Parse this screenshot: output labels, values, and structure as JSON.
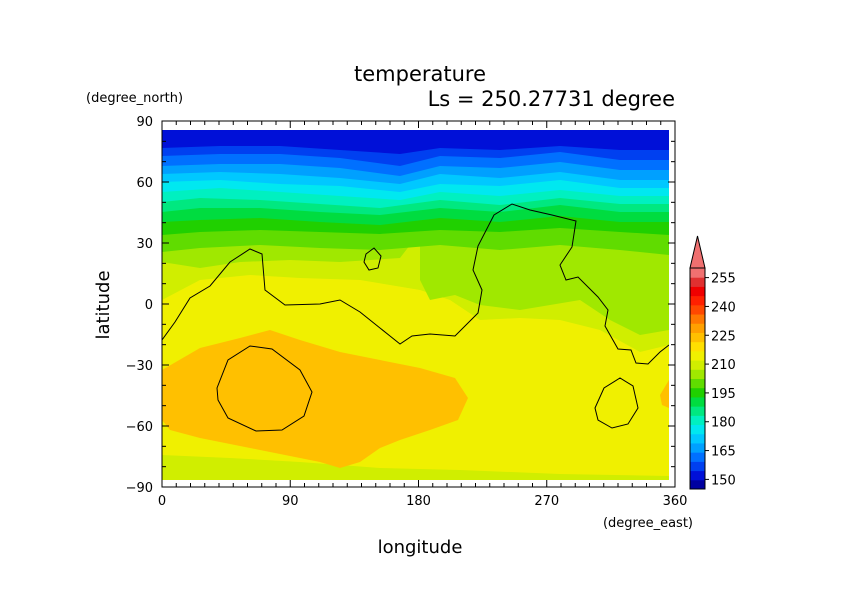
{
  "chart_data": {
    "type": "heatmap",
    "title": "temperature",
    "subtitle": "Ls = 250.27731 degree",
    "xlabel": "longitude",
    "ylabel": "latitude",
    "x_unit": "(degree_east)",
    "y_unit": "(degree_north)",
    "xlim": [
      0,
      360
    ],
    "ylim": [
      -90,
      90
    ],
    "x_ticks": [
      "0",
      "90",
      "180",
      "270",
      "360"
    ],
    "y_ticks": [
      "90",
      "60",
      "30",
      "0",
      "−30",
      "−60",
      "−90"
    ],
    "colorbar": {
      "levels": [
        145,
        150,
        155,
        160,
        165,
        170,
        175,
        180,
        185,
        190,
        195,
        200,
        205,
        210,
        215,
        220,
        225,
        230,
        235,
        240,
        245,
        250,
        255,
        260
      ],
      "labels": [
        "150",
        "165",
        "180",
        "195",
        "210",
        "225",
        "240",
        "255"
      ],
      "colors": [
        "#0000a0",
        "#0010d8",
        "#0040f0",
        "#0070ff",
        "#00a0ff",
        "#00c8ff",
        "#00e8f0",
        "#00f0c0",
        "#00e880",
        "#00dc40",
        "#20d000",
        "#60dc00",
        "#a0e800",
        "#d0ee00",
        "#f0f000",
        "#ffe000",
        "#ffc000",
        "#ffa000",
        "#ff7800",
        "#ff4800",
        "#ff2000",
        "#f00000",
        "#e03030",
        "#f07070"
      ],
      "extend_max_color": "#f07070"
    },
    "contour_level": 220,
    "grid": false
  }
}
